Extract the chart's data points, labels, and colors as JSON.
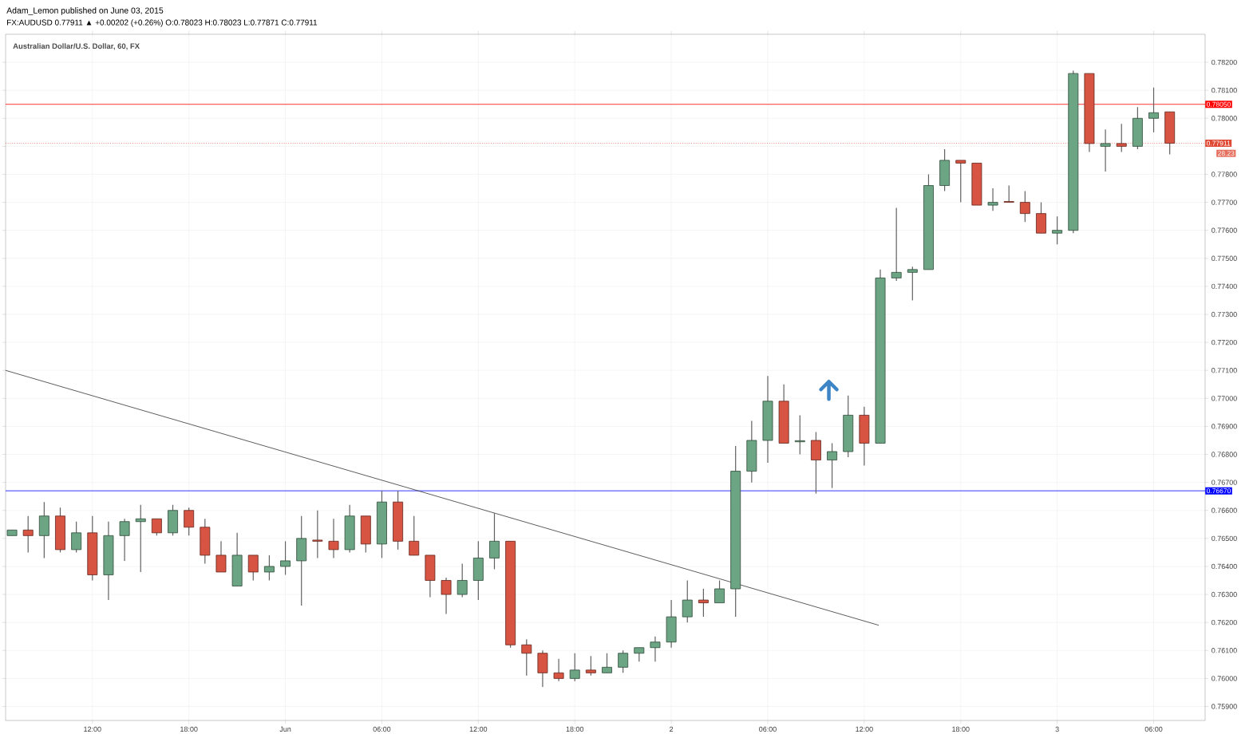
{
  "chart_data": {
    "type": "candlestick",
    "title": "Adam_Lemon published on June 03, 2015",
    "subtitle": "FX:AUDUSD 0.77911 ▲ +0.00202 (+0.26%) O:0.78023 H:0.78023 L:0.77871 C:0.77911",
    "annotations": [
      "Australian Dollar/U.S. Dollar, 60, FX",
      "28.23"
    ],
    "x": [
      "2015-05-31T07:00",
      "2015-05-31T08:00",
      "2015-05-31T09:00",
      "2015-05-31T10:00",
      "2015-05-31T11:00",
      "2015-05-31T12:00",
      "2015-05-31T13:00",
      "2015-05-31T14:00",
      "2015-05-31T15:00",
      "2015-05-31T16:00",
      "2015-05-31T17:00",
      "2015-05-31T18:00",
      "2015-05-31T19:00",
      "2015-05-31T20:00",
      "2015-05-31T21:00",
      "2015-05-31T22:00",
      "2015-05-31T23:00",
      "2015-06-01T00:00",
      "2015-06-01T01:00",
      "2015-06-01T02:00",
      "2015-06-01T03:00",
      "2015-06-01T04:00",
      "2015-06-01T05:00",
      "2015-06-01T06:00",
      "2015-06-01T07:00",
      "2015-06-01T08:00",
      "2015-06-01T09:00",
      "2015-06-01T10:00",
      "2015-06-01T11:00",
      "2015-06-01T12:00",
      "2015-06-01T13:00",
      "2015-06-01T14:00",
      "2015-06-01T15:00",
      "2015-06-01T16:00",
      "2015-06-01T17:00",
      "2015-06-01T18:00",
      "2015-06-01T19:00",
      "2015-06-01T20:00",
      "2015-06-01T21:00",
      "2015-06-01T22:00",
      "2015-06-01T23:00",
      "2015-06-02T00:00",
      "2015-06-02T01:00",
      "2015-06-02T02:00",
      "2015-06-02T03:00",
      "2015-06-02T04:00",
      "2015-06-02T05:00",
      "2015-06-02T06:00",
      "2015-06-02T07:00",
      "2015-06-02T08:00",
      "2015-06-02T09:00",
      "2015-06-02T10:00",
      "2015-06-02T11:00",
      "2015-06-02T12:00",
      "2015-06-02T13:00",
      "2015-06-02T14:00",
      "2015-06-02T15:00",
      "2015-06-02T16:00",
      "2015-06-02T17:00",
      "2015-06-02T18:00",
      "2015-06-02T19:00",
      "2015-06-02T20:00",
      "2015-06-02T21:00",
      "2015-06-02T22:00",
      "2015-06-02T23:00",
      "2015-06-03T00:00",
      "2015-06-03T01:00",
      "2015-06-03T02:00",
      "2015-06-03T03:00",
      "2015-06-03T04:00",
      "2015-06-03T05:00",
      "2015-06-03T06:00",
      "2015-06-03T07:00"
    ],
    "ohlc": [
      [
        0.7651,
        0.7653,
        0.7651,
        0.7653
      ],
      [
        0.7653,
        0.7658,
        0.7645,
        0.7651
      ],
      [
        0.7651,
        0.7663,
        0.7643,
        0.7658
      ],
      [
        0.7658,
        0.7661,
        0.7645,
        0.7646
      ],
      [
        0.7646,
        0.7656,
        0.7645,
        0.7652
      ],
      [
        0.7652,
        0.7658,
        0.7635,
        0.7637
      ],
      [
        0.7637,
        0.7656,
        0.7628,
        0.7651
      ],
      [
        0.7651,
        0.7657,
        0.7642,
        0.7656
      ],
      [
        0.7656,
        0.7662,
        0.7638,
        0.7657
      ],
      [
        0.7657,
        0.7657,
        0.7651,
        0.7652
      ],
      [
        0.7652,
        0.7662,
        0.7651,
        0.766
      ],
      [
        0.766,
        0.7661,
        0.7651,
        0.7654
      ],
      [
        0.7654,
        0.7657,
        0.7641,
        0.7644
      ],
      [
        0.7644,
        0.7649,
        0.7638,
        0.7638
      ],
      [
        0.7633,
        0.7652,
        0.7633,
        0.7644
      ],
      [
        0.7644,
        0.7644,
        0.7635,
        0.7638
      ],
      [
        0.7638,
        0.7644,
        0.7635,
        0.764
      ],
      [
        0.764,
        0.7649,
        0.7637,
        0.7642
      ],
      [
        0.7642,
        0.7658,
        0.7626,
        0.765
      ],
      [
        0.76494,
        0.766,
        0.7643,
        0.7649
      ],
      [
        0.7649,
        0.7657,
        0.7643,
        0.7646
      ],
      [
        0.7646,
        0.7662,
        0.7645,
        0.7658
      ],
      [
        0.7658,
        0.7658,
        0.7645,
        0.7648
      ],
      [
        0.7648,
        0.7667,
        0.7643,
        0.7663
      ],
      [
        0.7663,
        0.7667,
        0.7646,
        0.7649
      ],
      [
        0.7649,
        0.7658,
        0.7644,
        0.7644
      ],
      [
        0.7644,
        0.7644,
        0.7629,
        0.7635
      ],
      [
        0.7635,
        0.7636,
        0.7623,
        0.763
      ],
      [
        0.763,
        0.7641,
        0.7629,
        0.7635
      ],
      [
        0.7635,
        0.7649,
        0.7628,
        0.7643
      ],
      [
        0.7643,
        0.7659,
        0.7639,
        0.7649
      ],
      [
        0.7649,
        0.7649,
        0.7611,
        0.7612
      ],
      [
        0.7612,
        0.7614,
        0.7601,
        0.7609
      ],
      [
        0.7609,
        0.761,
        0.7597,
        0.7602
      ],
      [
        0.7602,
        0.7607,
        0.7599,
        0.76
      ],
      [
        0.76,
        0.7609,
        0.7599,
        0.7603
      ],
      [
        0.7603,
        0.7608,
        0.7601,
        0.7602
      ],
      [
        0.7602,
        0.7609,
        0.7602,
        0.7604
      ],
      [
        0.7604,
        0.761,
        0.7602,
        0.7609
      ],
      [
        0.7609,
        0.7611,
        0.7606,
        0.7611
      ],
      [
        0.7611,
        0.7615,
        0.7606,
        0.7613
      ],
      [
        0.7613,
        0.7628,
        0.7611,
        0.7622
      ],
      [
        0.7622,
        0.7635,
        0.762,
        0.7628
      ],
      [
        0.7628,
        0.7632,
        0.7622,
        0.7627
      ],
      [
        0.7627,
        0.7635,
        0.7627,
        0.7632
      ],
      [
        0.7632,
        0.7683,
        0.7622,
        0.7674
      ],
      [
        0.7674,
        0.7692,
        0.767,
        0.7685
      ],
      [
        0.7685,
        0.7708,
        0.7677,
        0.7699
      ],
      [
        0.7699,
        0.7705,
        0.7684,
        0.7684
      ],
      [
        0.76845,
        0.7694,
        0.768,
        0.76849
      ],
      [
        0.7685,
        0.7688,
        0.7666,
        0.7678
      ],
      [
        0.7678,
        0.7684,
        0.7668,
        0.7681
      ],
      [
        0.7681,
        0.7701,
        0.7679,
        0.7694
      ],
      [
        0.7694,
        0.7697,
        0.7676,
        0.7684
      ],
      [
        0.7684,
        0.7746,
        0.7684,
        0.7743
      ],
      [
        0.7743,
        0.7768,
        0.7742,
        0.7745
      ],
      [
        0.7745,
        0.7747,
        0.7735,
        0.7746
      ],
      [
        0.7746,
        0.778,
        0.7746,
        0.7776
      ],
      [
        0.7776,
        0.7789,
        0.7774,
        0.7785
      ],
      [
        0.7785,
        0.7785,
        0.777,
        0.7784
      ],
      [
        0.7784,
        0.7784,
        0.7769,
        0.7769
      ],
      [
        0.7769,
        0.7775,
        0.7767,
        0.777
      ],
      [
        0.77703,
        0.7776,
        0.777,
        0.777
      ],
      [
        0.777,
        0.7774,
        0.7763,
        0.7766
      ],
      [
        0.7766,
        0.777,
        0.7759,
        0.7759
      ],
      [
        0.7759,
        0.7765,
        0.7755,
        0.776
      ],
      [
        0.776,
        0.7817,
        0.7759,
        0.7816
      ],
      [
        0.7816,
        0.7816,
        0.7788,
        0.7791
      ],
      [
        0.779,
        0.7796,
        0.7781,
        0.7791
      ],
      [
        0.7791,
        0.7798,
        0.7788,
        0.779
      ],
      [
        0.779,
        0.7804,
        0.7789,
        0.78
      ],
      [
        0.78,
        0.7811,
        0.7795,
        0.7802
      ],
      [
        0.78023,
        0.78023,
        0.77871,
        0.77911
      ]
    ],
    "colors": [
      "#6ba583",
      "#d75442",
      "#6ba583",
      "#d75442",
      "#6ba583",
      "#d75442",
      "#6ba583",
      "#6ba583",
      "#6ba583",
      "#d75442",
      "#6ba583",
      "#d75442",
      "#d75442",
      "#d75442",
      "#6ba583",
      "#d75442",
      "#6ba583",
      "#6ba583",
      "#6ba583",
      "#d75442",
      "#d75442",
      "#6ba583",
      "#d75442",
      "#6ba583",
      "#d75442",
      "#d75442",
      "#d75442",
      "#d75442",
      "#6ba583",
      "#6ba583",
      "#6ba583",
      "#d75442",
      "#d75442",
      "#d75442",
      "#d75442",
      "#6ba583",
      "#d75442",
      "#6ba583",
      "#6ba583",
      "#6ba583",
      "#6ba583",
      "#6ba583",
      "#6ba583",
      "#d75442",
      "#6ba583",
      "#6ba583",
      "#6ba583",
      "#6ba583",
      "#d75442",
      "#6ba583",
      "#d75442",
      "#6ba583",
      "#6ba583",
      "#d75442",
      "#6ba583",
      "#6ba583",
      "#6ba583",
      "#6ba583",
      "#6ba583",
      "#d75442",
      "#d75442",
      "#6ba583",
      "#d75442",
      "#d75442",
      "#d75442",
      "#6ba583",
      "#6ba583",
      "#d75442",
      "#6ba583",
      "#d75442",
      "#6ba583",
      "#6ba583",
      "#d75442"
    ],
    "series": [
      {
        "type": "line",
        "color": "#333333",
        "x": [
          "2015-05-31T06:36",
          "2015-06-02T12:54"
        ],
        "values": [
          0.771,
          0.7619
        ]
      }
    ],
    "xlim": [
      "2015-05-31T06:36",
      "2015-06-03T09:12"
    ],
    "ylim": [
      0.7585,
      0.783
    ],
    "xticks": [
      {
        "value": "2015-05-31T12:00",
        "label": "12:00"
      },
      {
        "value": "2015-05-31T18:00",
        "label": "18:00"
      },
      {
        "value": "2015-06-01T00:00",
        "label": "Jun"
      },
      {
        "value": "2015-06-01T06:00",
        "label": "06:00"
      },
      {
        "value": "2015-06-01T12:00",
        "label": "12:00"
      },
      {
        "value": "2015-06-01T18:00",
        "label": "18:00"
      },
      {
        "value": "2015-06-02T00:00",
        "label": "2"
      },
      {
        "value": "2015-06-02T06:00",
        "label": "06:00"
      },
      {
        "value": "2015-06-02T12:00",
        "label": "12:00"
      },
      {
        "value": "2015-06-02T18:00",
        "label": "18:00"
      },
      {
        "value": "2015-06-03T00:00",
        "label": "3"
      },
      {
        "value": "2015-06-03T06:00",
        "label": "06:00"
      }
    ],
    "yticks": [
      {
        "value": 0.759,
        "label": "0.75900"
      },
      {
        "value": 0.76,
        "label": "0.76000"
      },
      {
        "value": 0.761,
        "label": "0.76100"
      },
      {
        "value": 0.762,
        "label": "0.76200"
      },
      {
        "value": 0.763,
        "label": "0.76300"
      },
      {
        "value": 0.764,
        "label": "0.76400"
      },
      {
        "value": 0.765,
        "label": "0.76500"
      },
      {
        "value": 0.766,
        "label": "0.76600"
      },
      {
        "value": 0.767,
        "label": "0.76700"
      },
      {
        "value": 0.768,
        "label": "0.76800"
      },
      {
        "value": 0.769,
        "label": "0.76900"
      },
      {
        "value": 0.77,
        "label": "0.77000"
      },
      {
        "value": 0.771,
        "label": "0.77100"
      },
      {
        "value": 0.772,
        "label": "0.77200"
      },
      {
        "value": 0.773,
        "label": "0.77300"
      },
      {
        "value": 0.774,
        "label": "0.77400"
      },
      {
        "value": 0.775,
        "label": "0.77500"
      },
      {
        "value": 0.776,
        "label": "0.77600"
      },
      {
        "value": 0.777,
        "label": "0.77700"
      },
      {
        "value": 0.778,
        "label": "0.77800"
      },
      {
        "value": 0.779,
        "label": null
      },
      {
        "value": 0.78,
        "label": "0.78000"
      },
      {
        "value": 0.781,
        "label": "0.78100"
      },
      {
        "value": 0.782,
        "label": "0.78200"
      }
    ],
    "ref_lines": [
      {
        "axis": "y",
        "value": 0.7805,
        "label": "0.78050",
        "color": "#ff0000",
        "line_style": "solid"
      },
      {
        "axis": "y",
        "value": 0.77911,
        "label": "0.77911",
        "color": "#e04a35",
        "line_style": "dotted"
      },
      {
        "axis": "y",
        "value": 0.7667,
        "label": "0.76670",
        "color": "#0000ff",
        "line_style": "solid"
      }
    ],
    "grid": true
  }
}
